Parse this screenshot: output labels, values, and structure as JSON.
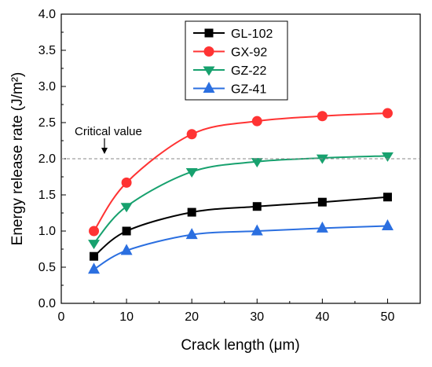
{
  "chart_data": {
    "type": "line",
    "xlabel": "Crack length (μm)",
    "ylabel": "Energy release rate (J/m²)",
    "xlim": [
      0,
      55
    ],
    "ylim": [
      0.0,
      4.0
    ],
    "x_ticks": [
      0,
      10,
      20,
      30,
      40,
      50
    ],
    "y_ticks": [
      0.0,
      0.5,
      1.0,
      1.5,
      2.0,
      2.5,
      3.0,
      3.5,
      4.0
    ],
    "y_tick_labels": [
      "0.0",
      "0.5",
      "1.0",
      "1.5",
      "2.0",
      "2.5",
      "3.0",
      "3.5",
      "4.0"
    ],
    "x": [
      5,
      10,
      20,
      30,
      40,
      50
    ],
    "series": [
      {
        "name": "GL-102",
        "values": [
          0.65,
          1.0,
          1.26,
          1.34,
          1.4,
          1.47
        ],
        "color": "#000000",
        "marker": "square"
      },
      {
        "name": "GX-92",
        "values": [
          1.0,
          1.67,
          2.34,
          2.52,
          2.59,
          2.63
        ],
        "color": "#ff3333",
        "marker": "circle"
      },
      {
        "name": "GZ-22",
        "values": [
          0.83,
          1.34,
          1.82,
          1.96,
          2.01,
          2.04
        ],
        "color": "#17a16e",
        "marker": "triangle-down"
      },
      {
        "name": "GZ-41",
        "values": [
          0.47,
          0.73,
          0.95,
          1.0,
          1.04,
          1.07
        ],
        "color": "#2b6fe0",
        "marker": "triangle-up"
      }
    ],
    "reference_line": {
      "y": 2.0,
      "label": "Critical value",
      "style": "dashed",
      "color": "#888888"
    },
    "grid": false,
    "legend": "top-center"
  }
}
